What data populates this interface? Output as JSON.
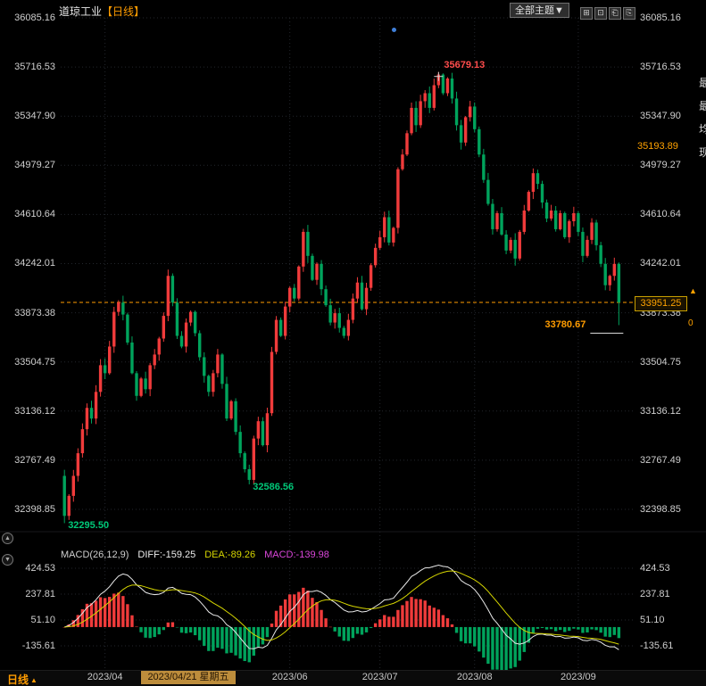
{
  "header": {
    "title": "道琼工业",
    "period_tag": "【日线】",
    "theme_button": "全部主题▼",
    "window_buttons": [
      {
        "name": "grid-layout-icon",
        "glyph": "⊞"
      },
      {
        "name": "single-layout-icon",
        "glyph": "⊡"
      },
      {
        "name": "prev-page-icon",
        "glyph": "⎗"
      },
      {
        "name": "next-page-icon",
        "glyph": "⎘"
      }
    ]
  },
  "left_pane_buttons": [
    {
      "name": "pane-up-icon",
      "glyph": "▲"
    },
    {
      "name": "pane-down-icon",
      "glyph": "▼"
    }
  ],
  "right_edge_labels": [
    "最",
    "最",
    "均",
    "现"
  ],
  "price_tags": {
    "upper": "35193.89",
    "current": "33951.25",
    "current_arrow": "▲",
    "change_fragment": "0"
  },
  "indicator_header": {
    "name": "MACD(26,12,9)",
    "diff": "DIFF:-159.25",
    "dea": "DEA:-89.26",
    "macd": "MACD:-139.98"
  },
  "x_axis": {
    "labels": [
      {
        "text": "2023/04",
        "day": 9
      },
      {
        "text": "2023/06",
        "day": 50
      },
      {
        "text": "2023/07",
        "day": 70
      },
      {
        "text": "2023/08",
        "day": 91
      },
      {
        "text": "2023/09",
        "day": 114
      }
    ],
    "selected_date": "2023/04/21 星期五"
  },
  "footer": {
    "period": "日线",
    "arrow": "▲"
  },
  "colors": {
    "up": "#f03b3b",
    "down": "#00a35c",
    "accent": "#ff9c00",
    "diff_line": "#e8e8e8",
    "dea_line": "#d6d600",
    "macd_text": "#d946d9",
    "grid": "#23262c",
    "tick_text": "#cfcfcf"
  },
  "chart_data": {
    "type": "candlestick",
    "title": "道琼工业 日线",
    "y_ticks": [
      36085.16,
      35716.53,
      35347.9,
      34979.27,
      34610.64,
      34242.01,
      33873.38,
      33504.75,
      33136.12,
      32767.49,
      32398.85
    ],
    "current_price": 33951.25,
    "open_first": 32650,
    "closes": [
      32350,
      32500,
      32650,
      32820,
      33000,
      33160,
      33080,
      33280,
      33480,
      33420,
      33620,
      33880,
      33950,
      33860,
      33650,
      33420,
      33250,
      33380,
      33300,
      33480,
      33560,
      33680,
      33850,
      34150,
      33950,
      33700,
      33620,
      33800,
      33880,
      33720,
      33540,
      33400,
      33280,
      33420,
      33560,
      33340,
      33080,
      33210,
      32980,
      32820,
      32700,
      32620,
      32930,
      33060,
      32880,
      33120,
      33580,
      33820,
      33700,
      33920,
      34060,
      33980,
      34220,
      34480,
      34300,
      34120,
      34240,
      34050,
      33930,
      33800,
      33870,
      33760,
      33700,
      33820,
      33980,
      34100,
      33900,
      34060,
      34230,
      34360,
      34440,
      34590,
      34400,
      34510,
      34950,
      35060,
      35220,
      35410,
      35280,
      35460,
      35520,
      35410,
      35580,
      35660,
      35520,
      35630,
      35480,
      35280,
      35150,
      35340,
      35420,
      35250,
      35060,
      34870,
      34690,
      34500,
      34620,
      34460,
      34340,
      34420,
      34280,
      34480,
      34640,
      34780,
      34920,
      34840,
      34700,
      34580,
      34640,
      34500,
      34620,
      34440,
      34560,
      34620,
      34480,
      34300,
      34420,
      34550,
      34380,
      34240,
      34080,
      34150,
      34240,
      33951.25
    ],
    "overrides": {
      "0": {
        "low": 32295.5
      },
      "41": {
        "low": 32586.56
      },
      "83": {
        "high": 35679.13
      },
      "123": {
        "low": 33780.67
      }
    },
    "annotations": [
      {
        "day": 83,
        "price": 35679.13,
        "text": "35679.13",
        "color": "#ff4d4d",
        "side": "high-right"
      },
      {
        "day": 123,
        "price": 33780.67,
        "text": "33780.67",
        "color": "#ff9c00",
        "side": "low-left"
      },
      {
        "day": 41,
        "price": 32586.56,
        "text": "32586.56",
        "color": "#00c878",
        "side": "low-right"
      },
      {
        "day": 0,
        "price": 32295.5,
        "text": "32295.50",
        "color": "#00c878",
        "side": "low-right"
      }
    ],
    "indicator": {
      "name": "MACD",
      "params": [
        26,
        12,
        9
      ],
      "diff": -159.25,
      "dea": -89.26,
      "macd": -139.98,
      "ticks": [
        424.53,
        237.81,
        51.1,
        -135.61
      ]
    }
  }
}
